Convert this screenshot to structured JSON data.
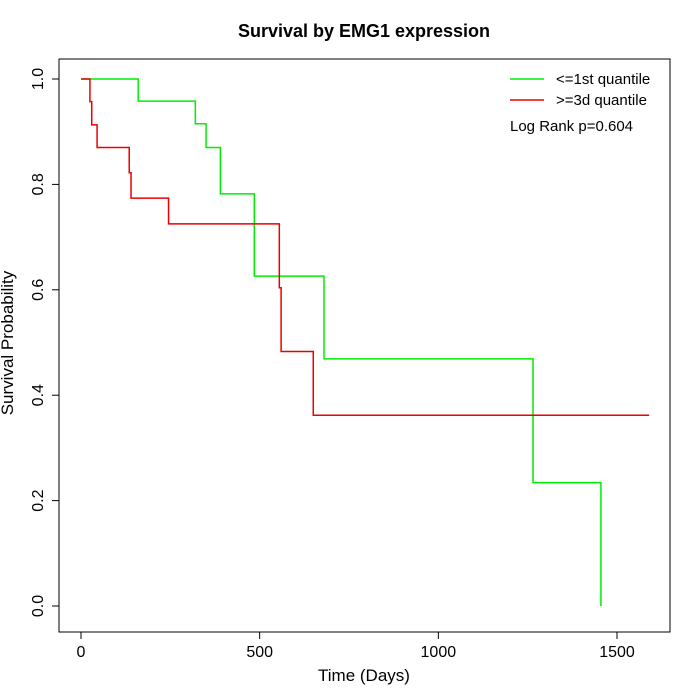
{
  "chart_data": {
    "type": "line",
    "title": "Survival by EMG1 expression",
    "xlabel": "Time (Days)",
    "ylabel": "Survival Probability",
    "xlim": [
      0,
      1600
    ],
    "ylim": [
      0,
      1
    ],
    "x_ticks": [
      0,
      500,
      1000,
      1500
    ],
    "y_ticks": [
      0.0,
      0.2,
      0.4,
      0.6,
      0.8,
      1.0
    ],
    "x_tick_labels": [
      "0",
      "500",
      "1000",
      "1500"
    ],
    "y_tick_labels": [
      "0.0",
      "0.2",
      "0.4",
      "0.6",
      "0.8",
      "1.0"
    ],
    "grid": false,
    "legend_position": "top-right",
    "annotation": "Log Rank p=0.604",
    "series": [
      {
        "name": "<=1st quantile",
        "color": "#00ee00",
        "steps": [
          [
            0,
            1.0
          ],
          [
            160,
            0.958
          ],
          [
            320,
            0.915
          ],
          [
            350,
            0.87
          ],
          [
            390,
            0.782
          ],
          [
            485,
            0.626
          ],
          [
            680,
            0.469
          ],
          [
            1265,
            0.234
          ],
          [
            1455,
            0.0
          ]
        ],
        "end_x": 1455
      },
      {
        "name": ">=3d quantile",
        "color": "#ee0000",
        "steps": [
          [
            0,
            1.0
          ],
          [
            25,
            0.957
          ],
          [
            30,
            0.913
          ],
          [
            45,
            0.87
          ],
          [
            135,
            0.822
          ],
          [
            140,
            0.774
          ],
          [
            245,
            0.725
          ],
          [
            555,
            0.604
          ],
          [
            560,
            0.483
          ],
          [
            650,
            0.362
          ]
        ],
        "end_x": 1590
      }
    ]
  }
}
